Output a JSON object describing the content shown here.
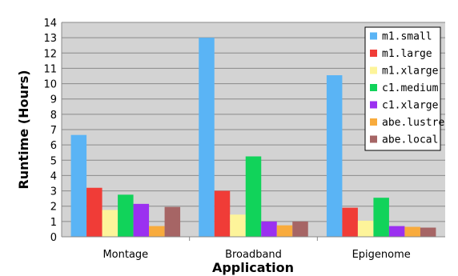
{
  "chart_data": {
    "type": "bar",
    "xlabel": "Application",
    "ylabel": "Runtime (Hours)",
    "categories": [
      "Montage",
      "Broadband",
      "Epigenome"
    ],
    "ylim": [
      0,
      14
    ],
    "yticks": [
      0,
      1,
      2,
      3,
      4,
      5,
      6,
      7,
      8,
      9,
      10,
      11,
      12,
      13,
      14
    ],
    "grid": true,
    "legend_position": "top-right",
    "series": [
      {
        "name": "m1.small",
        "color": "#5ab4f5",
        "values": [
          6.65,
          13.0,
          10.55
        ]
      },
      {
        "name": "m1.large",
        "color": "#f03c37",
        "values": [
          3.2,
          3.0,
          1.9
        ]
      },
      {
        "name": "m1.xlarge",
        "color": "#fdf49a",
        "values": [
          1.75,
          1.45,
          1.05
        ]
      },
      {
        "name": "c1.medium",
        "color": "#11d35a",
        "values": [
          2.75,
          5.25,
          2.55
        ]
      },
      {
        "name": "c1.xlarge",
        "color": "#9b30f0",
        "values": [
          2.15,
          1.0,
          0.7
        ]
      },
      {
        "name": "abe.lustre",
        "color": "#f8ab3d",
        "values": [
          0.7,
          0.75,
          0.65
        ]
      },
      {
        "name": "abe.local",
        "color": "#a66565",
        "values": [
          1.95,
          1.0,
          0.6
        ]
      }
    ]
  }
}
